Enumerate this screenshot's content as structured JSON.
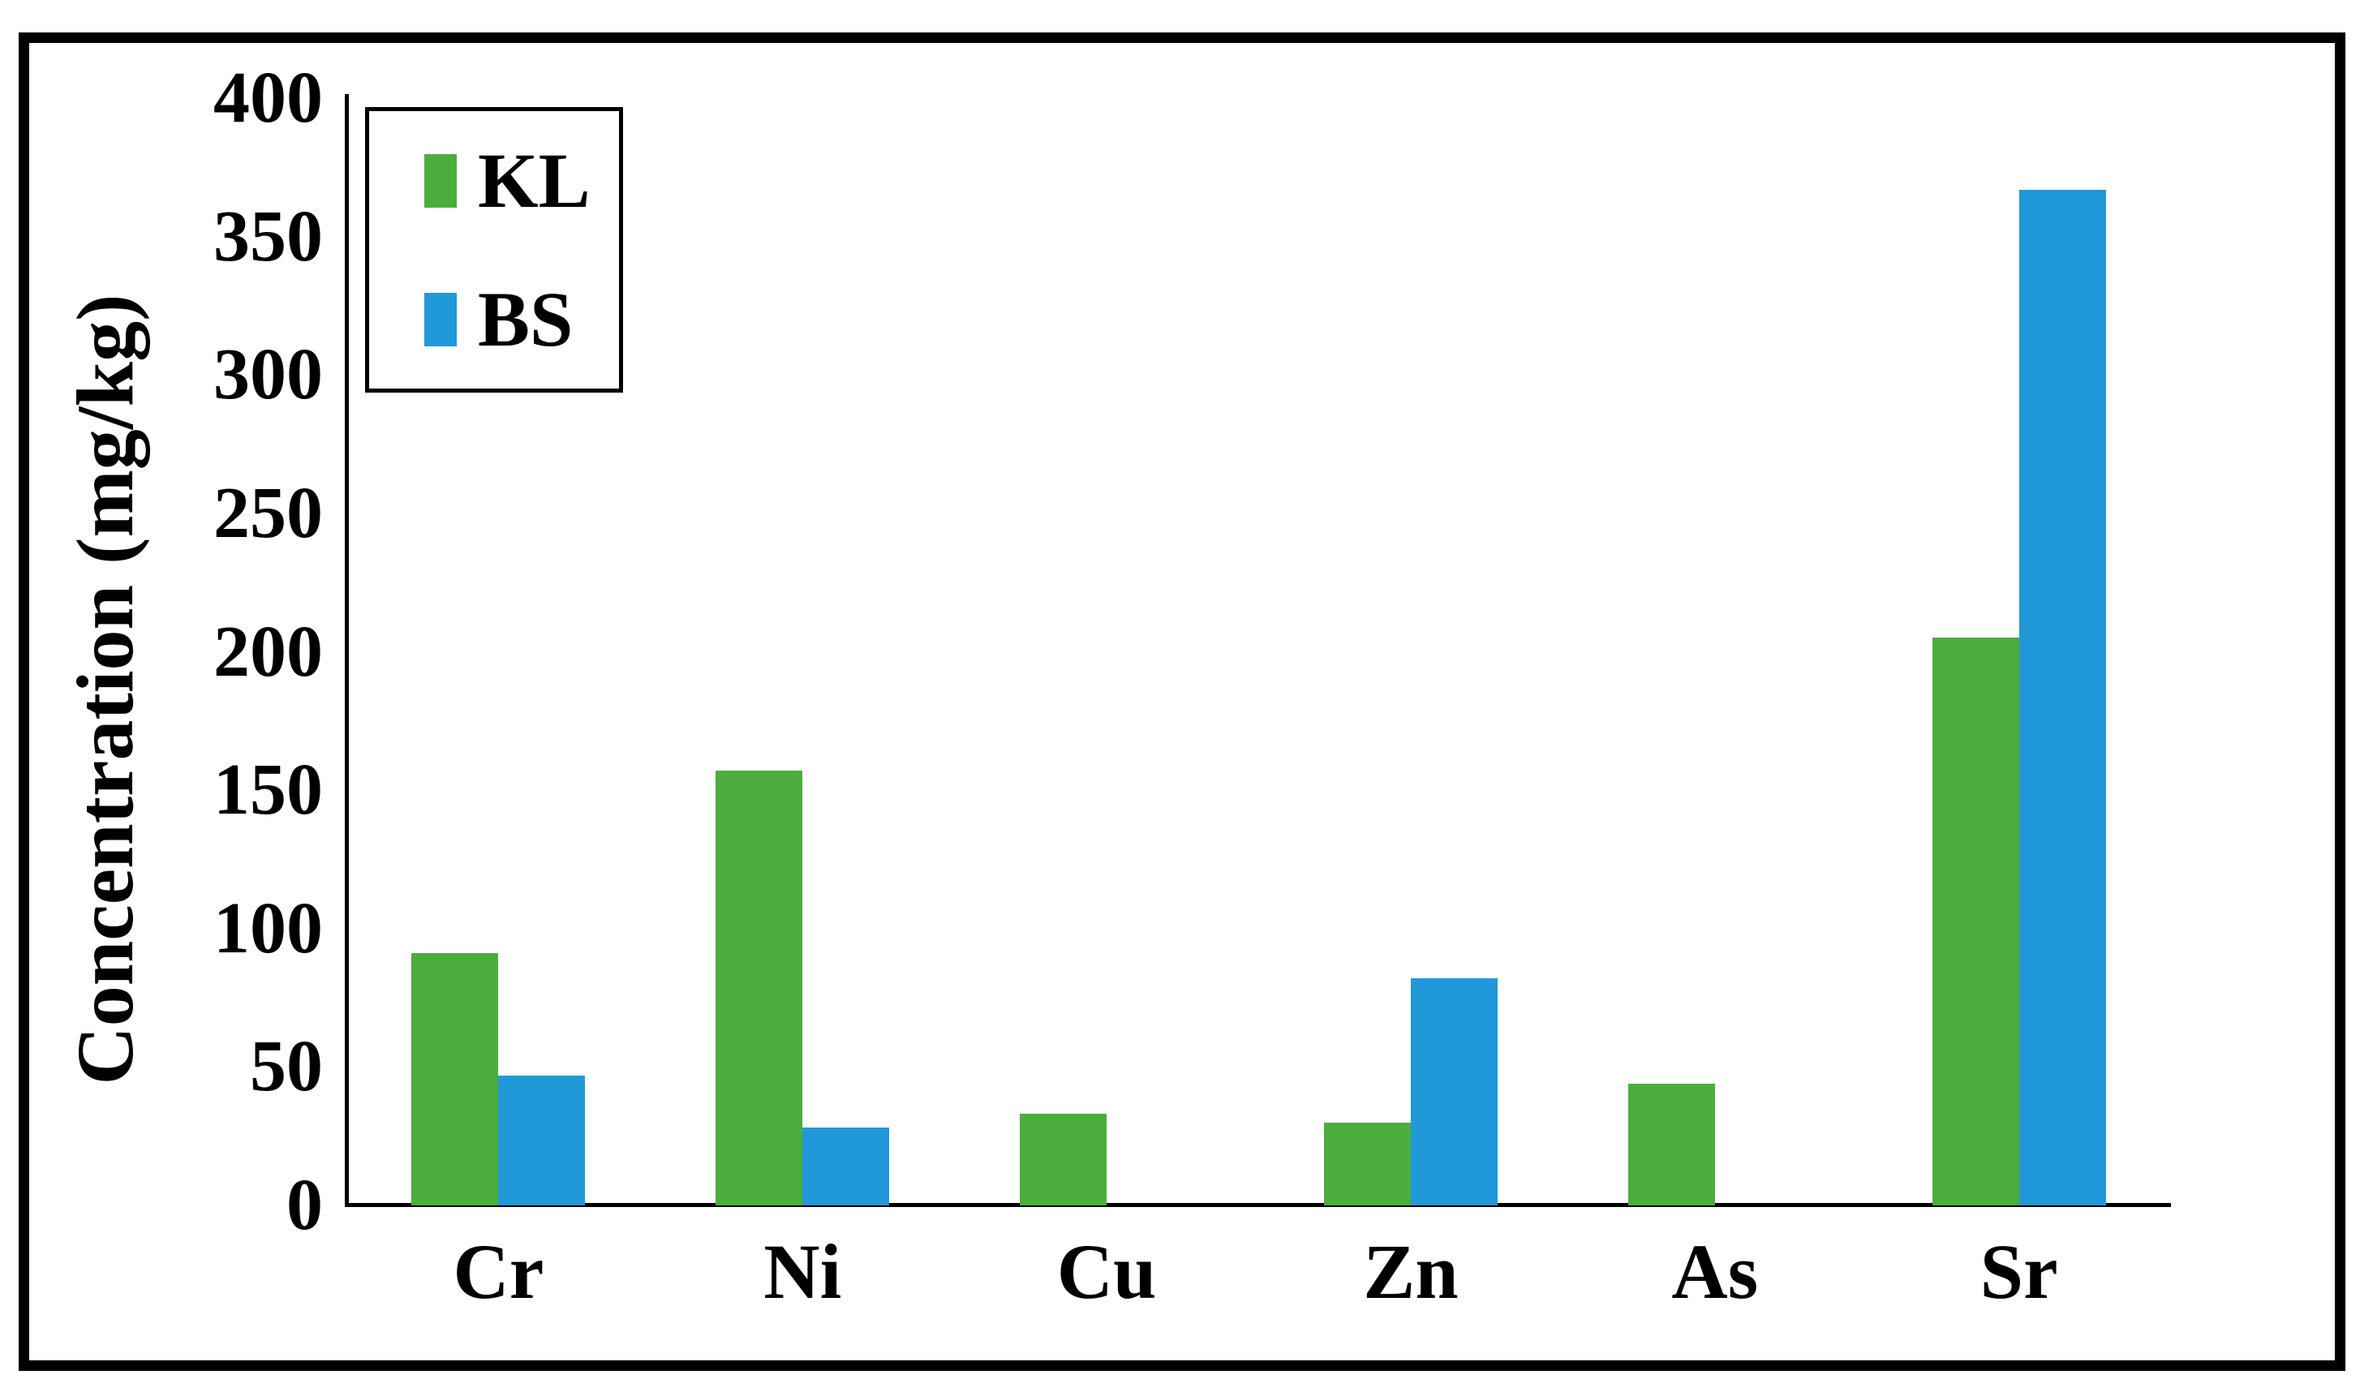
{
  "figure": {
    "description": "Grouped bar chart of heavy-metal concentrations for two sample sites"
  },
  "chart_data": {
    "type": "bar",
    "title": "",
    "categories": [
      "Cr",
      "Ni",
      "Cu",
      "Zn",
      "As",
      "Sr"
    ],
    "series": [
      {
        "name": "KL",
        "color": "#4BAE3C",
        "values": [
          91,
          157,
          33,
          30,
          44,
          205
        ]
      },
      {
        "name": "BS",
        "color": "#2199D8",
        "values": [
          47,
          28,
          0,
          82,
          0,
          367
        ]
      }
    ],
    "xlabel": "",
    "ylabel": "Concentration (mg/kg)",
    "ylim": [
      0,
      400
    ],
    "ytick_interval": 50,
    "yticks": [
      "400",
      "350",
      "300",
      "250",
      "200",
      "150",
      "100",
      "50",
      "0"
    ],
    "grid": false,
    "legend_position": "top-left",
    "axis_color": "#000000",
    "background_color": "#ffffff"
  }
}
